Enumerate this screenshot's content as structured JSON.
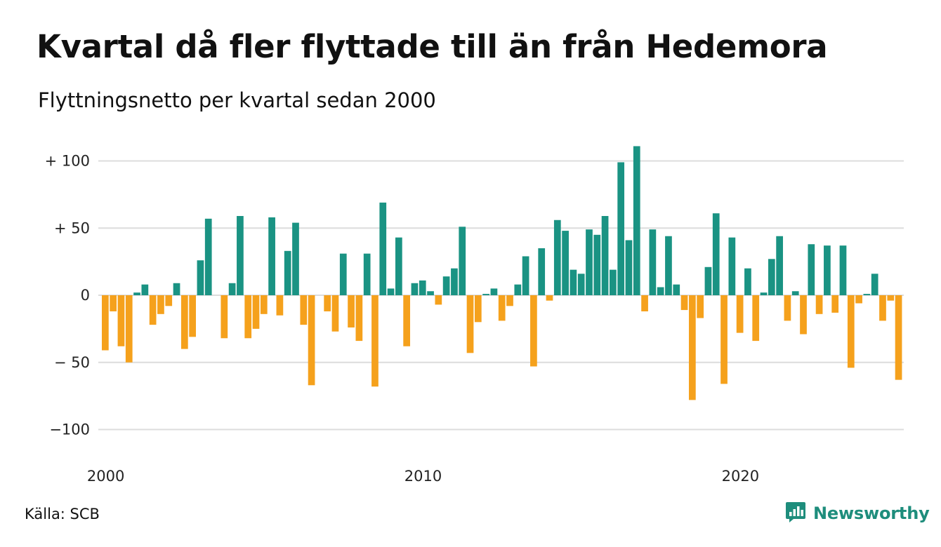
{
  "header": {
    "title": "Kvartal då fler flyttade till än från Hedemora",
    "subtitle": "Flyttningsnetto per kvartal sedan 2000"
  },
  "footer": {
    "source": "Källa: SCB",
    "brand": "Newsworthy",
    "brand_icon": "chart-bubble-icon"
  },
  "colors": {
    "positive": "#1a9383",
    "negative": "#f5a11c",
    "grid": "#dcdcdc",
    "brand": "#1e8d7c"
  },
  "chart_data": {
    "type": "bar",
    "title": "Kvartal då fler flyttade till än från Hedemora",
    "subtitle": "Flyttningsnetto per kvartal sedan 2000",
    "xlabel": "",
    "ylabel": "",
    "start_year": 2000,
    "periods_per_year": 4,
    "ylim": [
      -110,
      113
    ],
    "y_ticks": [
      100,
      50,
      0,
      -50,
      -100
    ],
    "y_tick_labels": [
      "+ 100",
      "+  50",
      "0",
      "− 50",
      "−100"
    ],
    "x_ticks": [
      2000,
      2010,
      2020
    ],
    "x_tick_labels": [
      "2000",
      "2010",
      "2020"
    ],
    "grid": true,
    "legend": "none",
    "series": [
      {
        "values": [
          -41,
          -12,
          -38,
          -50,
          2,
          8,
          -22,
          -14,
          -8,
          9,
          -40,
          -31,
          26,
          57,
          0,
          -32,
          9,
          59,
          -32,
          -25,
          -14,
          58,
          -15,
          33,
          54,
          -22,
          -67,
          0,
          -12,
          -27,
          31,
          -24,
          -34,
          31,
          -68,
          69,
          5,
          43,
          -38,
          9,
          11,
          3,
          -7,
          14,
          20,
          51,
          -43,
          -20,
          1,
          5,
          -19,
          -8,
          8,
          29,
          -53,
          35,
          -4,
          56,
          48,
          19,
          16,
          49,
          45,
          59,
          19,
          99,
          41,
          111,
          -12,
          49,
          6,
          44,
          8,
          -11,
          -78,
          -17,
          21,
          61,
          -66,
          43,
          -28,
          20,
          -34,
          2,
          27,
          44,
          -19,
          3,
          -29,
          38,
          -14,
          37,
          -13,
          37,
          -54,
          -6,
          1,
          16,
          -19,
          -4,
          -63
        ]
      }
    ]
  }
}
